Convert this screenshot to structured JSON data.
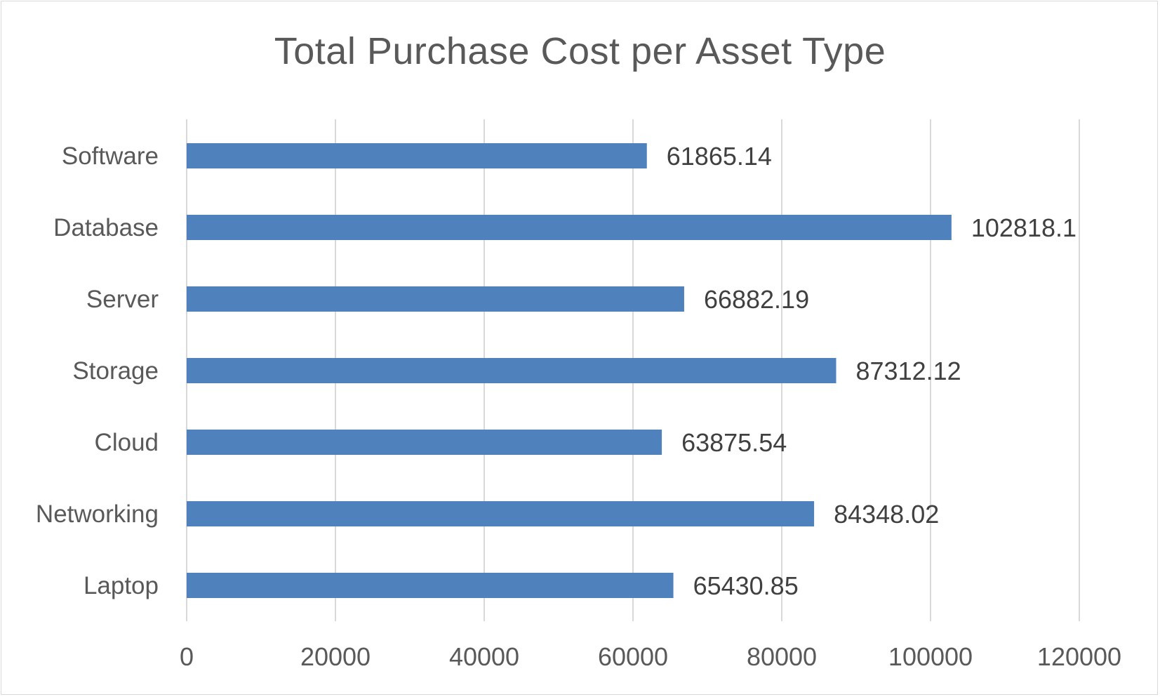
{
  "chart_data": {
    "type": "bar",
    "orientation": "horizontal",
    "title": "Total Purchase Cost per Asset Type",
    "categories": [
      "Software",
      "Database",
      "Server",
      "Storage",
      "Cloud",
      "Networking",
      "Laptop"
    ],
    "values": [
      61865.14,
      102818.1,
      66882.19,
      87312.12,
      63875.54,
      84348.02,
      65430.85
    ],
    "data_labels": [
      "61865.14",
      "102818.1",
      "66882.19",
      "87312.12",
      "63875.54",
      "84348.02",
      "65430.85"
    ],
    "xlim": [
      0,
      120000
    ],
    "xticks": [
      0,
      20000,
      40000,
      60000,
      80000,
      100000,
      120000
    ],
    "xtick_labels": [
      "0",
      "20000",
      "40000",
      "60000",
      "80000",
      "100000",
      "120000"
    ],
    "grid": "vertical",
    "legend": "none",
    "bar_color": "#4f81bd",
    "grid_color": "#d9d9d9",
    "text_color": "#595959",
    "data_label_color": "#404040"
  }
}
